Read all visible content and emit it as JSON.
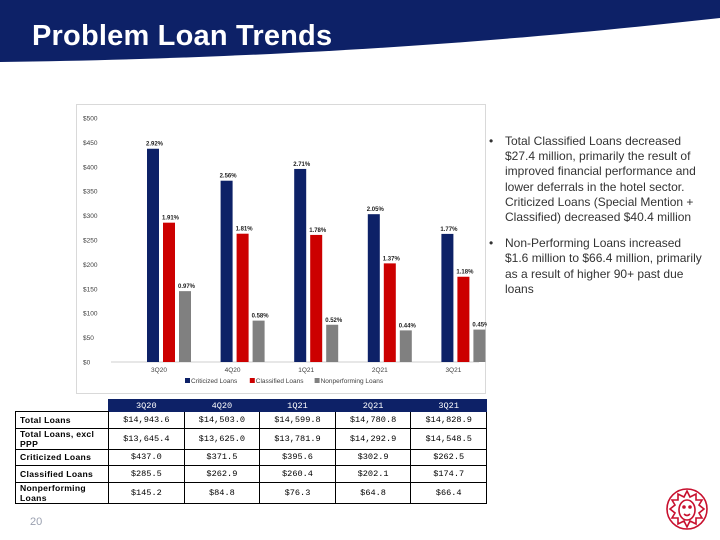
{
  "slide": {
    "title": "Problem Loan Trends",
    "page_number": "20"
  },
  "colors": {
    "header": "#0d2167",
    "criticized": "#0d2167",
    "classified": "#cc0000",
    "nonperforming": "#808080",
    "logo": "#c8102e"
  },
  "chart_data": {
    "type": "bar",
    "categories": [
      "3Q20",
      "4Q20",
      "1Q21",
      "2Q21",
      "3Q21"
    ],
    "series": [
      {
        "name": "Criticized Loans",
        "values": [
          437.0,
          371.5,
          395.6,
          302.9,
          262.5
        ],
        "labels": [
          "2.92%",
          "2.56%",
          "2.71%",
          "2.05%",
          "1.77%"
        ]
      },
      {
        "name": "Classified Loans",
        "values": [
          285.5,
          262.9,
          260.4,
          202.1,
          174.7
        ],
        "labels": [
          "1.91%",
          "1.81%",
          "1.78%",
          "1.37%",
          "1.18%"
        ]
      },
      {
        "name": "Nonperforming Loans",
        "values": [
          145.2,
          84.8,
          76.3,
          64.8,
          66.4
        ],
        "labels": [
          "0.97%",
          "0.58%",
          "0.52%",
          "0.44%",
          "0.45%"
        ]
      }
    ],
    "y_ticks": [
      "$0",
      "$50",
      "$100",
      "$150",
      "$200",
      "$250",
      "$300",
      "$350",
      "$400",
      "$450",
      "$500"
    ],
    "ylim": [
      0,
      500
    ],
    "grid": false,
    "legend_position": "bottom"
  },
  "bullets": [
    "Total Classified Loans decreased $27.4 million, primarily the result of improved financial performance and lower deferrals in the hotel sector. Criticized Loans (Special Mention + Classified) decreased $40.4 million",
    "Non-Performing Loans increased $1.6 million to $66.4 million, primarily as a result of higher 90+ past due loans"
  ],
  "table": {
    "headers": [
      "3Q20",
      "4Q20",
      "1Q21",
      "2Q21",
      "3Q21"
    ],
    "rows": [
      {
        "label": "Total Loans",
        "values": [
          "$14,943.6",
          "$14,503.0",
          "$14,599.8",
          "$14,780.8",
          "$14,828.9"
        ]
      },
      {
        "label": "Total Loans, excl PPP",
        "values": [
          "$13,645.4",
          "$13,625.0",
          "$13,781.9",
          "$14,292.9",
          "$14,548.5"
        ]
      },
      {
        "label": "Criticized Loans",
        "values": [
          "$437.0",
          "$371.5",
          "$395.6",
          "$302.9",
          "$262.5"
        ]
      },
      {
        "label": "Classified Loans",
        "values": [
          "$285.5",
          "$262.9",
          "$260.4",
          "$202.1",
          "$174.7"
        ]
      },
      {
        "label": "Nonperforming Loans",
        "values": [
          "$145.2",
          "$84.8",
          "$76.3",
          "$64.8",
          "$66.4"
        ]
      }
    ]
  }
}
